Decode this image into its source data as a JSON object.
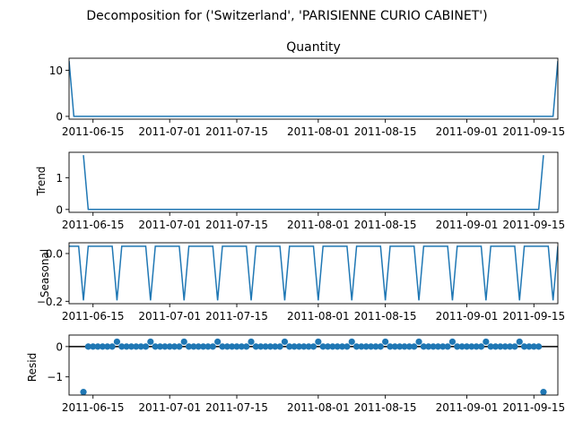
{
  "title": "Decomposition for ('Switzerland', 'PARISIENNE CURIO CABINET')",
  "chart_data": [
    {
      "type": "line",
      "panel": "observed",
      "title": "Quantity",
      "ylabel": "",
      "x_start": "2011-06-10",
      "x_end": "2011-09-20",
      "xlim": [
        "2011-06-10",
        "2011-09-20"
      ],
      "ylim": [
        -0.6,
        12.6
      ],
      "yticks": [
        0,
        10
      ],
      "xticks": [
        "2011-06-15",
        "2011-07-01",
        "2011-07-15",
        "2011-08-01",
        "2011-08-15",
        "2011-09-01",
        "2011-09-15"
      ],
      "series": [
        {
          "color": "#1f77b4",
          "points": [
            [
              "2011-06-10",
              12
            ],
            [
              "2011-06-11",
              0
            ],
            [
              "2011-09-19",
              0
            ],
            [
              "2011-09-20",
              12
            ]
          ]
        }
      ]
    },
    {
      "type": "line",
      "panel": "trend",
      "title": "",
      "ylabel": "Trend",
      "xlim": [
        "2011-06-10",
        "2011-09-20"
      ],
      "ylim": [
        -0.09,
        1.8
      ],
      "yticks": [
        0,
        1
      ],
      "xticks": [
        "2011-06-15",
        "2011-07-01",
        "2011-07-15",
        "2011-08-01",
        "2011-08-15",
        "2011-09-01",
        "2011-09-15"
      ],
      "series": [
        {
          "color": "#1f77b4",
          "points": [
            [
              "2011-06-13",
              1.71
            ],
            [
              "2011-06-14",
              0
            ],
            [
              "2011-09-16",
              0
            ],
            [
              "2011-09-17",
              1.71
            ]
          ]
        }
      ]
    },
    {
      "type": "line",
      "panel": "seasonal",
      "title": "",
      "ylabel": "Seasonal",
      "xlim": [
        "2011-06-10",
        "2011-09-20"
      ],
      "ylim": [
        -0.21,
        0.045
      ],
      "yticks": [
        -0.2,
        0.0
      ],
      "ytick_labels": [
        "−0.2",
        "0.0"
      ],
      "xticks": [
        "2011-06-15",
        "2011-07-01",
        "2011-07-15",
        "2011-08-01",
        "2011-08-15",
        "2011-09-01",
        "2011-09-15"
      ],
      "series": [
        {
          "color": "#1f77b4",
          "pattern_period_days": 7,
          "pattern": [
            -0.196,
            0.0306,
            0.0306,
            0.0306,
            0.0306,
            0.0306,
            0.0306
          ],
          "pattern_start": "2011-06-13"
        }
      ]
    },
    {
      "type": "scatter",
      "panel": "resid",
      "title": "",
      "ylabel": "Resid",
      "xlim": [
        "2011-06-10",
        "2011-09-20"
      ],
      "ylim": [
        -1.6,
        0.38
      ],
      "yticks": [
        -1,
        0
      ],
      "ytick_labels": [
        "−1",
        "0"
      ],
      "xticks": [
        "2011-06-15",
        "2011-07-01",
        "2011-07-15",
        "2011-08-01",
        "2011-08-15",
        "2011-09-01",
        "2011-09-15"
      ],
      "hline": 0,
      "series": [
        {
          "color": "#1f77b4",
          "start": "2011-06-13",
          "end": "2011-09-17",
          "baseline": 0.0,
          "periodic_high": {
            "period_days": 7,
            "first": "2011-06-20",
            "value": 0.16
          },
          "special": [
            [
              "2011-06-13",
              -1.5
            ],
            [
              "2011-09-17",
              -1.5
            ]
          ]
        }
      ]
    }
  ]
}
